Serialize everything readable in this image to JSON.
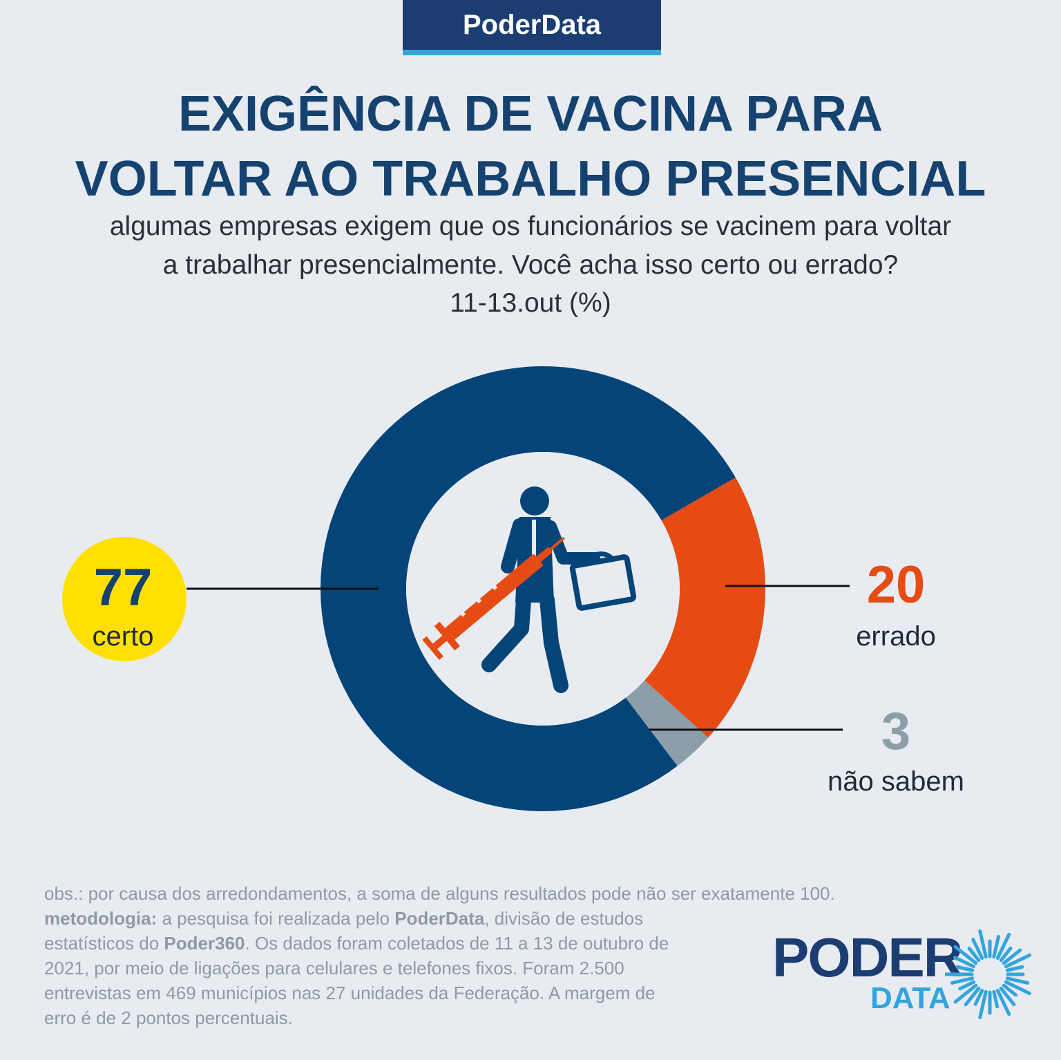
{
  "brand": "PoderData",
  "title_line1": "EXIGÊNCIA DE VACINA PARA",
  "title_line2": "VOLTAR AO TRABALHO PRESENCIAL",
  "subtitle_line1": "algumas empresas exigem que os funcionários se vacinem para voltar",
  "subtitle_line2": "a trabalhar presencialmente. Você acha isso certo ou errado?",
  "date": "11-13.out  (%)",
  "chart_data": {
    "type": "pie",
    "categories": [
      "certo",
      "errado",
      "não sabem"
    ],
    "values": [
      77,
      20,
      3
    ],
    "colors": [
      "#044479",
      "#e64b13",
      "#8c9ea8"
    ],
    "label_colors": [
      "#16426f",
      "#e64b13",
      "#8c9ea8"
    ],
    "highlight_color": "#ffe000"
  },
  "footer": {
    "obs": "obs.: por causa dos arredondamentos, a soma de alguns resultados pode não ser exatamente 100.",
    "metodologia_label": "metodologia:",
    "line2_a": " a pesquisa foi realizada pelo ",
    "line2_b": "PoderData",
    "line2_c": ", divisão de estudos",
    "line3_a": "estatísticos do ",
    "line3_b": "Poder360",
    "line3_c": ". Os dados foram coletados de 11 a 13 de outubro de",
    "line4": "2021, por meio de ligações para celulares e telefones fixos. Foram 2.500",
    "line5": "entrevistas em 469 municípios nas 27 unidades da Federação. A margem de",
    "line6": "erro é de 2 pontos percentuais."
  },
  "logo": {
    "poder": "PODER",
    "data": "DATA"
  },
  "icons": [
    "businessman-icon",
    "syringe-icon",
    "briefcase-icon",
    "sunburst-logo-icon"
  ]
}
